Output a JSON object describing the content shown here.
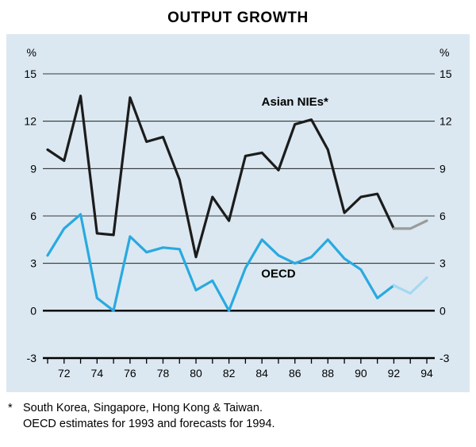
{
  "title": "OUTPUT GROWTH",
  "footnote": {
    "marker": "*",
    "line1": "South Korea, Singapore, Hong Kong & Taiwan.",
    "line2": "OECD estimates for 1993 and forecasts for 1994."
  },
  "chart_data": {
    "type": "line",
    "title": "OUTPUT GROWTH",
    "y_unit": "%",
    "ylim": [
      -3,
      15
    ],
    "yticks": [
      -3,
      0,
      3,
      6,
      9,
      12,
      15
    ],
    "grid": true,
    "plot_bg": "#dbe8f1",
    "x": [
      1971,
      1972,
      1973,
      1974,
      1975,
      1976,
      1977,
      1978,
      1979,
      1980,
      1981,
      1982,
      1983,
      1984,
      1985,
      1986,
      1987,
      1988,
      1989,
      1990,
      1991,
      1992,
      1993,
      1994
    ],
    "xtick_years": [
      1972,
      1974,
      1976,
      1978,
      1980,
      1982,
      1984,
      1986,
      1988,
      1990,
      1992,
      1994
    ],
    "xtick_labels": [
      "72",
      "74",
      "76",
      "78",
      "80",
      "82",
      "84",
      "86",
      "88",
      "90",
      "92",
      "94"
    ],
    "series": [
      {
        "name": "Asian NIEs*",
        "color": "#1c1c1c",
        "forecast_color": "#9b9b9b",
        "forecast_start": 1992,
        "values": [
          10.2,
          9.5,
          13.6,
          4.9,
          4.8,
          13.5,
          10.7,
          11.0,
          8.3,
          3.4,
          7.2,
          5.7,
          9.8,
          10.0,
          8.9,
          11.8,
          12.1,
          10.2,
          6.2,
          7.2,
          7.4,
          5.2,
          5.2,
          5.7
        ],
        "label": {
          "text": "Asian NIEs*",
          "x": 1986,
          "y": 13.0
        }
      },
      {
        "name": "OECD",
        "color": "#29a9e1",
        "forecast_color": "#a5d8f1",
        "forecast_start": 1992,
        "values": [
          3.5,
          5.2,
          6.1,
          0.8,
          0.0,
          4.7,
          3.7,
          4.0,
          3.9,
          1.3,
          1.9,
          0.0,
          2.7,
          4.5,
          3.5,
          3.0,
          3.4,
          4.5,
          3.3,
          2.6,
          0.8,
          1.6,
          1.1,
          2.1
        ],
        "label": {
          "text": "OECD",
          "x": 1985,
          "y": 2.1
        }
      }
    ]
  }
}
